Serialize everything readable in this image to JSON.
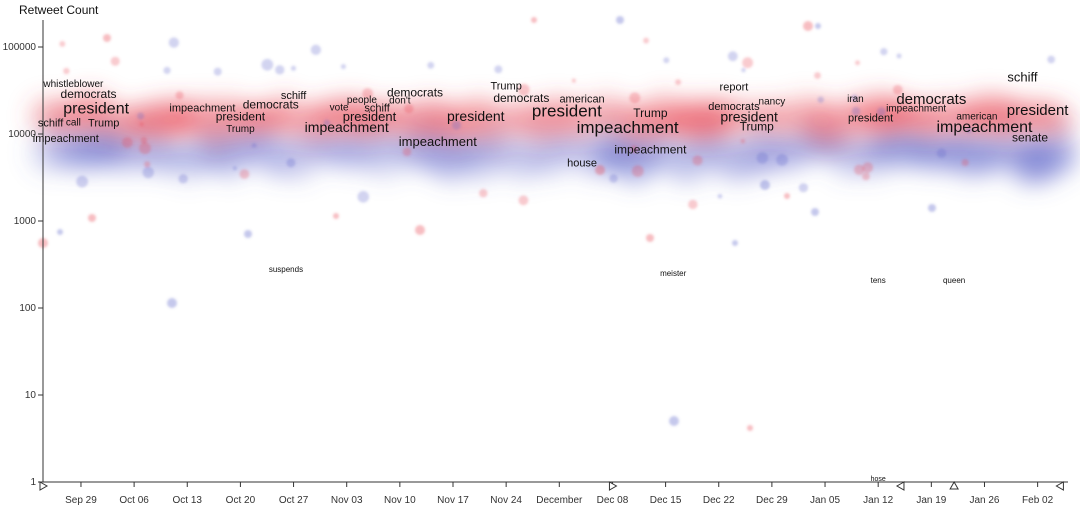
{
  "chart_data": {
    "type": "scatter",
    "title": "",
    "ylabel": "Retweet Count",
    "xlabel": "",
    "yscale": "log",
    "ylim": [
      1,
      200000
    ],
    "xlim": [
      "2019-09-24",
      "2020-02-06"
    ],
    "y_ticks": [
      {
        "value": 1,
        "label": "1"
      },
      {
        "value": 10,
        "label": "10"
      },
      {
        "value": 100,
        "label": "100"
      },
      {
        "value": 1000,
        "label": "1000"
      },
      {
        "value": 10000,
        "label": "10000"
      },
      {
        "value": 100000,
        "label": "100000"
      }
    ],
    "x_ticks": [
      {
        "date": "2019-09-29",
        "label": "Sep 29"
      },
      {
        "date": "2019-10-06",
        "label": "Oct 06"
      },
      {
        "date": "2019-10-13",
        "label": "Oct 13"
      },
      {
        "date": "2019-10-20",
        "label": "Oct 20"
      },
      {
        "date": "2019-10-27",
        "label": "Oct 27"
      },
      {
        "date": "2019-11-03",
        "label": "Nov 03"
      },
      {
        "date": "2019-11-10",
        "label": "Nov 10"
      },
      {
        "date": "2019-11-17",
        "label": "Nov 17"
      },
      {
        "date": "2019-11-24",
        "label": "Nov 24"
      },
      {
        "date": "2019-12-01",
        "label": "December"
      },
      {
        "date": "2019-12-08",
        "label": "Dec 08"
      },
      {
        "date": "2019-12-15",
        "label": "Dec 15"
      },
      {
        "date": "2019-12-22",
        "label": "Dec 22"
      },
      {
        "date": "2019-12-29",
        "label": "Dec 29"
      },
      {
        "date": "2020-01-05",
        "label": "Jan 05"
      },
      {
        "date": "2020-01-12",
        "label": "Jan 12"
      },
      {
        "date": "2020-01-19",
        "label": "Jan 19"
      },
      {
        "date": "2020-01-26",
        "label": "Jan 26"
      },
      {
        "date": "2020-02-02",
        "label": "Feb 02"
      }
    ],
    "colors": {
      "red": "#e8424f",
      "blue": "#5d63c9"
    },
    "markers": [
      {
        "date": "2019-09-24",
        "dir": "right"
      },
      {
        "date": "2019-12-08",
        "dir": "right"
      },
      {
        "date": "2020-01-15",
        "dir": "left"
      },
      {
        "date": "2020-01-22",
        "dir": "up"
      },
      {
        "date": "2020-02-05",
        "dir": "left"
      }
    ],
    "words": [
      {
        "text": "whistleblower",
        "date": "2019-09-28",
        "y": 38000,
        "size": 10
      },
      {
        "text": "democrats",
        "date": "2019-09-30",
        "y": 29000,
        "size": 12
      },
      {
        "text": "president",
        "date": "2019-10-01",
        "y": 20000,
        "size": 16
      },
      {
        "text": "schiff",
        "date": "2019-09-25",
        "y": 13500,
        "size": 11
      },
      {
        "text": "call",
        "date": "2019-09-28",
        "y": 13800,
        "size": 10
      },
      {
        "text": "Trump",
        "date": "2019-10-02",
        "y": 13500,
        "size": 11
      },
      {
        "text": "impeachment",
        "date": "2019-09-27",
        "y": 9000,
        "size": 11
      },
      {
        "text": "impeachment",
        "date": "2019-10-15",
        "y": 20000,
        "size": 11
      },
      {
        "text": "schiff",
        "date": "2019-10-27",
        "y": 28000,
        "size": 11
      },
      {
        "text": "democrats",
        "date": "2019-10-24",
        "y": 22000,
        "size": 12
      },
      {
        "text": "president",
        "date": "2019-10-20",
        "y": 16000,
        "size": 12
      },
      {
        "text": "Trump",
        "date": "2019-10-20",
        "y": 11500,
        "size": 10
      },
      {
        "text": "people",
        "date": "2019-11-05",
        "y": 25000,
        "size": 10
      },
      {
        "text": "vote",
        "date": "2019-11-02",
        "y": 20500,
        "size": 10
      },
      {
        "text": "schiff",
        "date": "2019-11-07",
        "y": 20000,
        "size": 11
      },
      {
        "text": "president",
        "date": "2019-11-06",
        "y": 16000,
        "size": 13
      },
      {
        "text": "impeachment",
        "date": "2019-11-03",
        "y": 12000,
        "size": 14
      },
      {
        "text": "democrats",
        "date": "2019-11-12",
        "y": 30000,
        "size": 12
      },
      {
        "text": "don't",
        "date": "2019-11-10",
        "y": 24500,
        "size": 10
      },
      {
        "text": "impeachment",
        "date": "2019-11-15",
        "y": 8200,
        "size": 13
      },
      {
        "text": "president",
        "date": "2019-11-20",
        "y": 16000,
        "size": 14
      },
      {
        "text": "Trump",
        "date": "2019-11-24",
        "y": 36000,
        "size": 11
      },
      {
        "text": "democrats",
        "date": "2019-11-26",
        "y": 26000,
        "size": 12
      },
      {
        "text": "president",
        "date": "2019-12-02",
        "y": 18500,
        "size": 17
      },
      {
        "text": "american",
        "date": "2019-12-04",
        "y": 25500,
        "size": 11
      },
      {
        "text": "impeachment",
        "date": "2019-12-10",
        "y": 12000,
        "size": 17
      },
      {
        "text": "Trump",
        "date": "2019-12-13",
        "y": 17500,
        "size": 12
      },
      {
        "text": "impeachment",
        "date": "2019-12-13",
        "y": 6700,
        "size": 12
      },
      {
        "text": "house",
        "date": "2019-12-04",
        "y": 4700,
        "size": 11
      },
      {
        "text": "report",
        "date": "2019-12-24",
        "y": 35000,
        "size": 11
      },
      {
        "text": "nancy",
        "date": "2019-12-29",
        "y": 24000,
        "size": 10
      },
      {
        "text": "democrats",
        "date": "2019-12-24",
        "y": 21000,
        "size": 11
      },
      {
        "text": "president",
        "date": "2019-12-26",
        "y": 15800,
        "size": 14
      },
      {
        "text": "Trump",
        "date": "2019-12-27",
        "y": 12300,
        "size": 12
      },
      {
        "text": "iran",
        "date": "2020-01-09",
        "y": 25500,
        "size": 10
      },
      {
        "text": "democrats",
        "date": "2020-01-19",
        "y": 25500,
        "size": 15
      },
      {
        "text": "impeachment",
        "date": "2020-01-17",
        "y": 20000,
        "size": 10
      },
      {
        "text": "president",
        "date": "2020-01-11",
        "y": 15500,
        "size": 11
      },
      {
        "text": "american",
        "date": "2020-01-25",
        "y": 16200,
        "size": 10
      },
      {
        "text": "impeachment",
        "date": "2020-01-26",
        "y": 12300,
        "size": 16
      },
      {
        "text": "schiff",
        "date": "2020-01-31",
        "y": 45000,
        "size": 13
      },
      {
        "text": "president",
        "date": "2020-02-02",
        "y": 19000,
        "size": 15
      },
      {
        "text": "senate",
        "date": "2020-02-01",
        "y": 9200,
        "size": 12
      },
      {
        "text": "suspends",
        "date": "2019-10-26",
        "y": 280,
        "size": 8
      },
      {
        "text": "meister",
        "date": "2019-12-16",
        "y": 250,
        "size": 8
      },
      {
        "text": "tens",
        "date": "2020-01-12",
        "y": 210,
        "size": 8
      },
      {
        "text": "queen",
        "date": "2020-01-22",
        "y": 210,
        "size": 8
      },
      {
        "text": "hose",
        "date": "2020-01-12",
        "y": 1.1,
        "size": 7
      }
    ]
  }
}
